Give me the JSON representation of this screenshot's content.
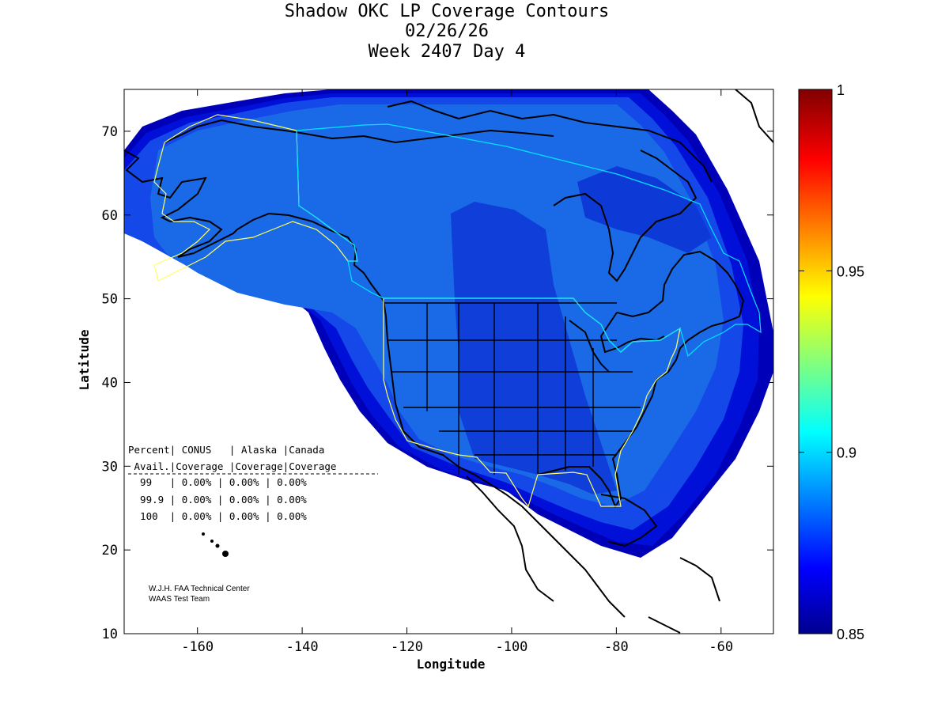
{
  "title": {
    "line1": "Shadow OKC LP Coverage Contours",
    "line2": "02/26/26",
    "line3": "Week 2407 Day 4"
  },
  "axes": {
    "xlabel": "Longitude",
    "ylabel": "Latitude",
    "xlim": [
      -174,
      -50
    ],
    "ylim": [
      10,
      75
    ],
    "xticks": [
      -160,
      -140,
      -120,
      -100,
      -80,
      -60
    ],
    "xtick_labels": [
      "-160",
      "-140",
      "-120",
      "-100",
      "-80",
      "-60"
    ],
    "yticks": [
      10,
      20,
      30,
      40,
      50,
      60,
      70
    ],
    "ytick_labels": [
      "10",
      "20",
      "30",
      "40",
      "50",
      "60",
      "70"
    ]
  },
  "colorbar": {
    "range": [
      0.85,
      1
    ],
    "ticks": [
      0.85,
      0.9,
      0.95,
      1
    ],
    "tick_labels": [
      "0.85",
      "0.9",
      "0.95",
      "1"
    ],
    "colormap": "jet"
  },
  "colors": {
    "ocean_outer": "#0a1fd6",
    "coverage_dark": "#0000cd",
    "coverage_mid": "#1a4de6",
    "coverage_light": "#1e6fe8",
    "coverage_central": "#0d3fd9",
    "conus_boundary": "#ffff66",
    "canada_boundary": "#00e5ff",
    "coastline": "#000000"
  },
  "table": {
    "header1": "Percent| CONUS   | Alaska |Canada",
    "header2": " Avail.|Coverage |Coverage|Coverage",
    "rows": [
      "  99   | 0.00% | 0.00% | 0.00%",
      "  99.9 | 0.00% | 0.00% | 0.00%",
      "  100  | 0.00% | 0.00% | 0.00%"
    ]
  },
  "credit": {
    "line1": "W.J.H. FAA Technical Center",
    "line2": "WAAS Test Team"
  }
}
